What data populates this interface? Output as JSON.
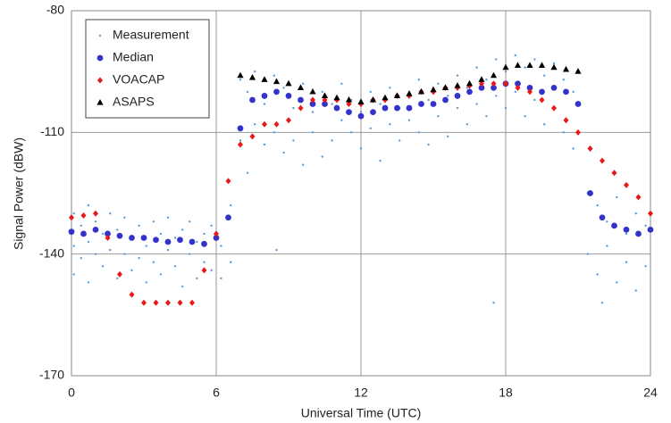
{
  "chart_data": {
    "type": "scatter",
    "x_label": "Universal Time (UTC)",
    "y_label": "Signal Power (dBW)",
    "xlim": [
      0,
      24
    ],
    "xticks": [
      0,
      6,
      12,
      18,
      24
    ],
    "ylim": [
      -170,
      -80
    ],
    "yticks": [
      -170,
      -140,
      -110,
      -80
    ],
    "grid": true,
    "legend": "upper left",
    "series": [
      {
        "name": "Measurement",
        "color": "#5b9bd5",
        "marker": "dot",
        "x": [
          0.1,
          0.1,
          0.1,
          0.4,
          0.4,
          0.7,
          0.7,
          0.7,
          1,
          1,
          1.3,
          1.3,
          1.6,
          1.6,
          1.9,
          1.9,
          2.2,
          2.2,
          2.5,
          2.5,
          2.8,
          2.8,
          3.1,
          3.1,
          3.4,
          3.4,
          3.7,
          3.7,
          4,
          4,
          4.3,
          4.3,
          4.6,
          4.6,
          4.9,
          4.9,
          5.2,
          5.2,
          5.5,
          5.5,
          5.8,
          5.8,
          6.2,
          6.2,
          6.6,
          6.6,
          7,
          7,
          7.3,
          7.3,
          7.6,
          7.6,
          8,
          8,
          8.4,
          8.4,
          8.8,
          8.8,
          9.2,
          9.2,
          9.6,
          9.6,
          10,
          10,
          10.4,
          10.4,
          10.8,
          10.8,
          11.2,
          11.2,
          11.6,
          11.6,
          12,
          12,
          12.4,
          12.4,
          12.8,
          12.8,
          13.2,
          13.2,
          13.6,
          13.6,
          14,
          14,
          14.4,
          14.4,
          14.8,
          14.8,
          15.2,
          15.2,
          15.6,
          15.6,
          16,
          16,
          16.4,
          16.4,
          16.8,
          16.8,
          17.2,
          17.2,
          17.6,
          17.6,
          18,
          18,
          18.4,
          18.4,
          18.8,
          18.8,
          19.2,
          19.2,
          19.6,
          19.6,
          20,
          20,
          20.4,
          20.4,
          20.8,
          20.8,
          21.4,
          21.4,
          21.8,
          21.8,
          22.2,
          22.2,
          22.6,
          22.6,
          23,
          23,
          23.4,
          23.4,
          23.8,
          23.8,
          17.5,
          8.5,
          22
        ],
        "values": [
          -130,
          -138,
          -145,
          -133,
          -141,
          -128,
          -137,
          -147,
          -132,
          -140,
          -135,
          -143,
          -130,
          -139,
          -134,
          -146,
          -131,
          -140,
          -136,
          -144,
          -133,
          -141,
          -138,
          -147,
          -132,
          -142,
          -135,
          -145,
          -139,
          -131,
          -143,
          -136,
          -134,
          -148,
          -140,
          -132,
          -137,
          -146,
          -135,
          -142,
          -133,
          -144,
          -138,
          -146,
          -128,
          -142,
          -97,
          -112,
          -100,
          -120,
          -95,
          -108,
          -103,
          -113,
          -96,
          -110,
          -99,
          -115,
          -104,
          -112,
          -98,
          -118,
          -105,
          -110,
          -100,
          -116,
          -103,
          -112,
          -107,
          -98,
          -110,
          -102,
          -105,
          -114,
          -100,
          -109,
          -103,
          -117,
          -99,
          -108,
          -104,
          -112,
          -100,
          -107,
          -97,
          -110,
          -102,
          -113,
          -98,
          -106,
          -101,
          -111,
          -96,
          -104,
          -99,
          -108,
          -94,
          -103,
          -97,
          -106,
          -92,
          -101,
          -95,
          -104,
          -91,
          -100,
          -94,
          -106,
          -92,
          -102,
          -96,
          -108,
          -93,
          -104,
          -97,
          -110,
          -100,
          -114,
          -125,
          -140,
          -128,
          -145,
          -132,
          -138,
          -126,
          -147,
          -135,
          -142,
          -130,
          -149,
          -133,
          -143,
          -152,
          -139,
          -152
        ]
      },
      {
        "name": "Median",
        "color": "#3333cc",
        "marker": "circle",
        "x": [
          0,
          0.5,
          1,
          1.5,
          2,
          2.5,
          3,
          3.5,
          4,
          4.5,
          5,
          5.5,
          6,
          6.5,
          7,
          7.5,
          8,
          8.5,
          9,
          9.5,
          10,
          10.5,
          11,
          11.5,
          12,
          12.5,
          13,
          13.5,
          14,
          14.5,
          15,
          15.5,
          16,
          16.5,
          17,
          17.5,
          18,
          18.5,
          19,
          19.5,
          20,
          20.5,
          21,
          21.5,
          22,
          22.5,
          23,
          23.5,
          24
        ],
        "values": [
          -134.5,
          -135,
          -134,
          -135,
          -135.5,
          -136,
          -136,
          -136.5,
          -137,
          -136.5,
          -137,
          -137.5,
          -136,
          -131,
          -109,
          -102,
          -101,
          -100,
          -101,
          -102,
          -103,
          -103,
          -104,
          -105,
          -106,
          -105,
          -104,
          -104,
          -104,
          -103,
          -103,
          -102,
          -101,
          -100,
          -99,
          -99,
          -98,
          -98,
          -99,
          -100,
          -99,
          -100,
          -103,
          -125,
          -131,
          -133,
          -134,
          -135,
          -134
        ]
      },
      {
        "name": "VOACAP",
        "color": "#e8191a",
        "marker": "diamond",
        "x": [
          0,
          0.5,
          1,
          1.5,
          2,
          2.5,
          3,
          3.5,
          4,
          4.5,
          5,
          5.5,
          6,
          6.5,
          7,
          7.5,
          8,
          8.5,
          9,
          9.5,
          10,
          10.5,
          11,
          11.5,
          12,
          12.5,
          13,
          13.5,
          14,
          14.5,
          15,
          15.5,
          16,
          16.5,
          17,
          17.5,
          18,
          18.5,
          19,
          19.5,
          20,
          20.5,
          21,
          21.5,
          22,
          22.5,
          23,
          23.5,
          24
        ],
        "values": [
          -131,
          -130.5,
          -130,
          -136,
          -145,
          -150,
          -152,
          -152,
          -152,
          -152,
          -152,
          -144,
          -135,
          -122,
          -113,
          -111,
          -108,
          -108,
          -107,
          -104,
          -102,
          -102,
          -102,
          -103,
          -103,
          -102,
          -102,
          -101,
          -101,
          -100,
          -100,
          -99,
          -99,
          -98.5,
          -98,
          -98,
          -98,
          -99,
          -100,
          -102,
          -104,
          -107,
          -110,
          -114,
          -117,
          -120,
          -123,
          -126,
          -130
        ]
      },
      {
        "name": "ASAPS",
        "color": "#000000",
        "marker": "triangle",
        "x": [
          7,
          7.5,
          8,
          8.5,
          9,
          9.5,
          10,
          10.5,
          11,
          11.5,
          12,
          12.5,
          13,
          13.5,
          14,
          14.5,
          15,
          15.5,
          16,
          16.5,
          17,
          17.5,
          18,
          18.5,
          19,
          19.5,
          20,
          20.5,
          21
        ],
        "values": [
          -96,
          -96.5,
          -97,
          -97.5,
          -98,
          -99,
          -100,
          -101,
          -101.5,
          -102,
          -102.5,
          -102,
          -101.5,
          -101,
          -100.5,
          -100,
          -99.5,
          -99,
          -98.5,
          -98,
          -97,
          -96,
          -94,
          -93.5,
          -93.5,
          -93.5,
          -94,
          -94.5,
          -95
        ]
      }
    ]
  }
}
